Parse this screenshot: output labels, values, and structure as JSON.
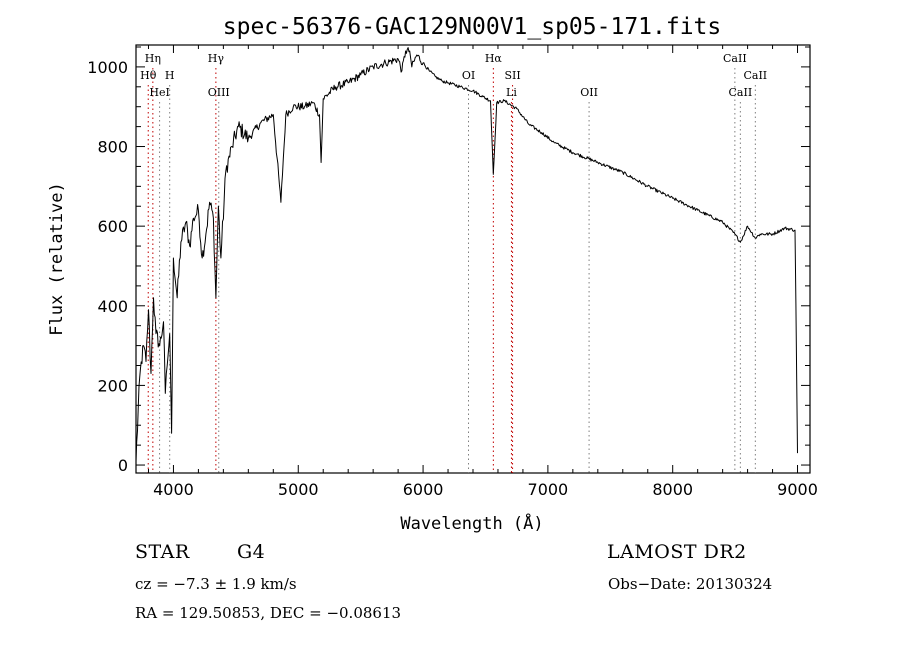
{
  "chart_data": {
    "type": "line",
    "title": "spec-56376-GAC129N00V1_sp05-171.fits",
    "xlabel": "Wavelength (Å)",
    "ylabel": "Flux (relative)",
    "xlim": [
      3700,
      9100
    ],
    "ylim": [
      -20,
      1055
    ],
    "xticks": [
      4000,
      5000,
      6000,
      7000,
      8000,
      9000
    ],
    "yticks": [
      0,
      200,
      400,
      600,
      800,
      1000
    ],
    "series": [
      {
        "x": [
          3700,
          3730,
          3760,
          3780,
          3800,
          3820,
          3840,
          3860,
          3890,
          3920,
          3935,
          3950,
          3970,
          3985,
          4000,
          4030,
          4060,
          4100,
          4130,
          4160,
          4200,
          4230,
          4260,
          4290,
          4320,
          4340,
          4360,
          4380,
          4420,
          4470,
          4520,
          4600,
          4700,
          4800,
          4861,
          4900,
          4960,
          5050,
          5120,
          5170,
          5183,
          5200,
          5300,
          5400,
          5500,
          5600,
          5700,
          5800,
          5830,
          5860,
          5893,
          5910,
          5950,
          6000,
          6050,
          6100,
          6150,
          6200,
          6300,
          6400,
          6480,
          6540,
          6563,
          6590,
          6650,
          6750,
          6850,
          6950,
          7050,
          7200,
          7400,
          7600,
          7800,
          8000,
          8200,
          8400,
          8498,
          8542,
          8600,
          8662,
          8700,
          8800,
          8900,
          8980,
          9000
        ],
        "y": [
          10,
          220,
          300,
          260,
          390,
          230,
          420,
          330,
          300,
          360,
          180,
          250,
          330,
          80,
          520,
          420,
          560,
          610,
          550,
          620,
          640,
          520,
          580,
          660,
          620,
          420,
          650,
          520,
          740,
          800,
          850,
          820,
          860,
          880,
          660,
          880,
          900,
          900,
          910,
          880,
          760,
          920,
          950,
          960,
          980,
          1000,
          1010,
          1020,
          990,
          1040,
          1040,
          1000,
          1030,
          1010,
          990,
          975,
          965,
          960,
          950,
          940,
          925,
          915,
          730,
          910,
          915,
          895,
          855,
          835,
          810,
          785,
          760,
          735,
          700,
          670,
          640,
          610,
          580,
          560,
          600,
          570,
          580,
          580,
          595,
          590,
          30
        ]
      }
    ],
    "line_labels": [
      {
        "text": "Hη",
        "x": 3835,
        "row": 1,
        "color": "#c00000"
      },
      {
        "text": "Hθ",
        "x": 3798,
        "row": 2,
        "color": "#c00000"
      },
      {
        "text": "H",
        "x": 3970,
        "row": 2,
        "color": "#7f7f7f"
      },
      {
        "text": "HeI",
        "x": 3889,
        "row": 3,
        "color": "#7f7f7f"
      },
      {
        "text": "Hγ",
        "x": 4340,
        "row": 1,
        "color": "#c00000"
      },
      {
        "text": "OIII",
        "x": 4363,
        "row": 3,
        "color": "#7f7f7f"
      },
      {
        "text": "OI",
        "x": 6364,
        "row": 2,
        "color": "#7f7f7f"
      },
      {
        "text": "Hα",
        "x": 6563,
        "row": 1,
        "color": "#c00000"
      },
      {
        "text": "SII",
        "x": 6717,
        "row": 2,
        "color": "#c00000"
      },
      {
        "text": "Li",
        "x": 6708,
        "row": 3,
        "color": "#c00000"
      },
      {
        "text": "OII",
        "x": 7330,
        "row": 3,
        "color": "#7f7f7f"
      },
      {
        "text": "CaII",
        "x": 8498,
        "row": 1,
        "color": "#7f7f7f"
      },
      {
        "text": "CaII",
        "x": 8662,
        "row": 2,
        "color": "#7f7f7f"
      },
      {
        "text": "CaII",
        "x": 8542,
        "row": 3,
        "color": "#7f7f7f"
      }
    ],
    "grid": false,
    "legend": "none"
  },
  "info": {
    "object": "STAR",
    "subclass": "G4",
    "survey": "LAMOST DR2",
    "cz": "cz = −7.3 ± 1.9 km/s",
    "obs_date": "Obs−Date: 20130324",
    "coords": "RA = 129.50853, DEC =  −0.08613"
  }
}
